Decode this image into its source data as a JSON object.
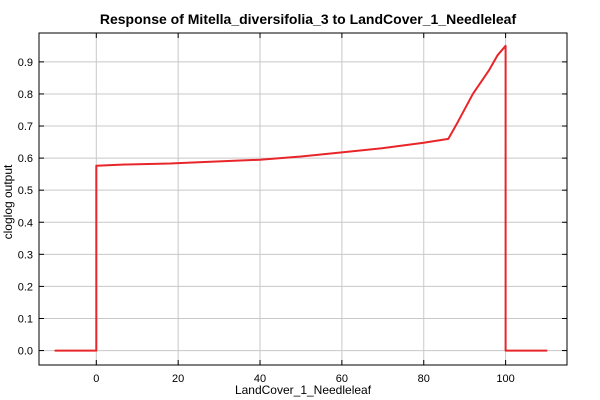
{
  "chart_data": {
    "type": "line",
    "title": "Response of Mitella_diversifolia_3 to LandCover_1_Needleleaf",
    "xlabel": "LandCover_1_Needleleaf",
    "ylabel": "cloglog output",
    "xlim": [
      -14,
      115
    ],
    "ylim": [
      -0.045,
      0.99
    ],
    "xticks": [
      0,
      20,
      40,
      60,
      80,
      100
    ],
    "yticks": [
      0.0,
      0.1,
      0.2,
      0.3,
      0.4,
      0.5,
      0.6,
      0.7,
      0.8,
      0.9
    ],
    "grid": true,
    "series": [
      {
        "color": "#e8262a",
        "x": [
          -10,
          0,
          0,
          7,
          18,
          25,
          40,
          50,
          60,
          70,
          80,
          86,
          88,
          92,
          96,
          98,
          100,
          100,
          110
        ],
        "y": [
          0.0,
          0.0,
          0.576,
          0.58,
          0.583,
          0.587,
          0.595,
          0.605,
          0.618,
          0.631,
          0.648,
          0.66,
          0.705,
          0.8,
          0.875,
          0.92,
          0.95,
          0.0,
          0.0
        ]
      }
    ]
  }
}
